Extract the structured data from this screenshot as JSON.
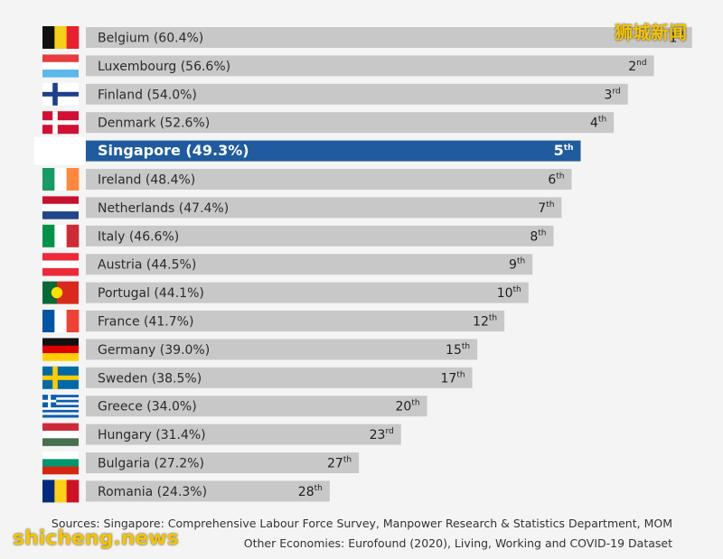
{
  "chart_data": {
    "type": "bar",
    "orientation": "horizontal",
    "categories": [
      "Belgium",
      "Luxembourg",
      "Finland",
      "Denmark",
      "Singapore",
      "Ireland",
      "Netherlands",
      "Italy",
      "Austria",
      "Portugal",
      "France",
      "Germany",
      "Sweden",
      "Greece",
      "Hungary",
      "Bulgaria",
      "Romania"
    ],
    "values": [
      60.4,
      56.6,
      54.0,
      52.6,
      49.3,
      48.4,
      47.4,
      46.6,
      44.5,
      44.1,
      41.7,
      39.0,
      38.5,
      34.0,
      31.4,
      27.2,
      24.3
    ],
    "labels": [
      "Belgium (60.4%)",
      "Luxembourg (56.6%)",
      "Finland (54.0%)",
      "Denmark (52.6%)",
      "Singapore (49.3%)",
      "Ireland (48.4%)",
      "Netherlands (47.4%)",
      "Italy (46.6%)",
      "Austria (44.5%)",
      "Portugal (44.1%)",
      "France (41.7%)",
      "Germany (39.0%)",
      "Sweden (38.5%)",
      "Greece (34.0%)",
      "Hungary (31.4%)",
      "Bulgaria (27.2%)",
      "Romania (24.3%)"
    ],
    "ranks": [
      {
        "num": "1",
        "suffix": "st"
      },
      {
        "num": "2",
        "suffix": "nd"
      },
      {
        "num": "3",
        "suffix": "rd"
      },
      {
        "num": "4",
        "suffix": "th"
      },
      {
        "num": "5",
        "suffix": "th"
      },
      {
        "num": "6",
        "suffix": "th"
      },
      {
        "num": "7",
        "suffix": "th"
      },
      {
        "num": "8",
        "suffix": "th"
      },
      {
        "num": "9",
        "suffix": "th"
      },
      {
        "num": "10",
        "suffix": "th"
      },
      {
        "num": "12",
        "suffix": "th"
      },
      {
        "num": "15",
        "suffix": "th"
      },
      {
        "num": "17",
        "suffix": "th"
      },
      {
        "num": "20",
        "suffix": "th"
      },
      {
        "num": "23",
        "suffix": "rd"
      },
      {
        "num": "27",
        "suffix": "th"
      },
      {
        "num": "28",
        "suffix": "th"
      }
    ],
    "highlight": "Singapore",
    "xlim": [
      0,
      61.5
    ],
    "grid": false,
    "colors": {
      "bar": "#c8c8c8",
      "highlight": "#1f5b9e"
    }
  },
  "flags": {
    "Belgium": "flag-belgium-icon",
    "Luxembourg": "flag-luxembourg-icon",
    "Finland": "flag-finland-icon",
    "Denmark": "flag-denmark-icon",
    "Singapore": "flag-singapore-icon",
    "Ireland": "flag-ireland-icon",
    "Netherlands": "flag-netherlands-icon",
    "Italy": "flag-italy-icon",
    "Austria": "flag-austria-icon",
    "Portugal": "flag-portugal-icon",
    "France": "flag-france-icon",
    "Germany": "flag-germany-icon",
    "Sweden": "flag-sweden-icon",
    "Greece": "flag-greece-icon",
    "Hungary": "flag-hungary-icon",
    "Bulgaria": "flag-bulgaria-icon",
    "Romania": "flag-romania-icon"
  },
  "footer": {
    "source_line_1": "Sources: Singapore: Comprehensive Labour Force Survey, Manpower Research & Statistics Department, MOM",
    "source_line_2": "Other Economies: Eurofound (2020), Living, Working and COVID-19 Dataset"
  },
  "watermarks": {
    "top": "狮城新闻",
    "bottom": "shicheng.news"
  }
}
